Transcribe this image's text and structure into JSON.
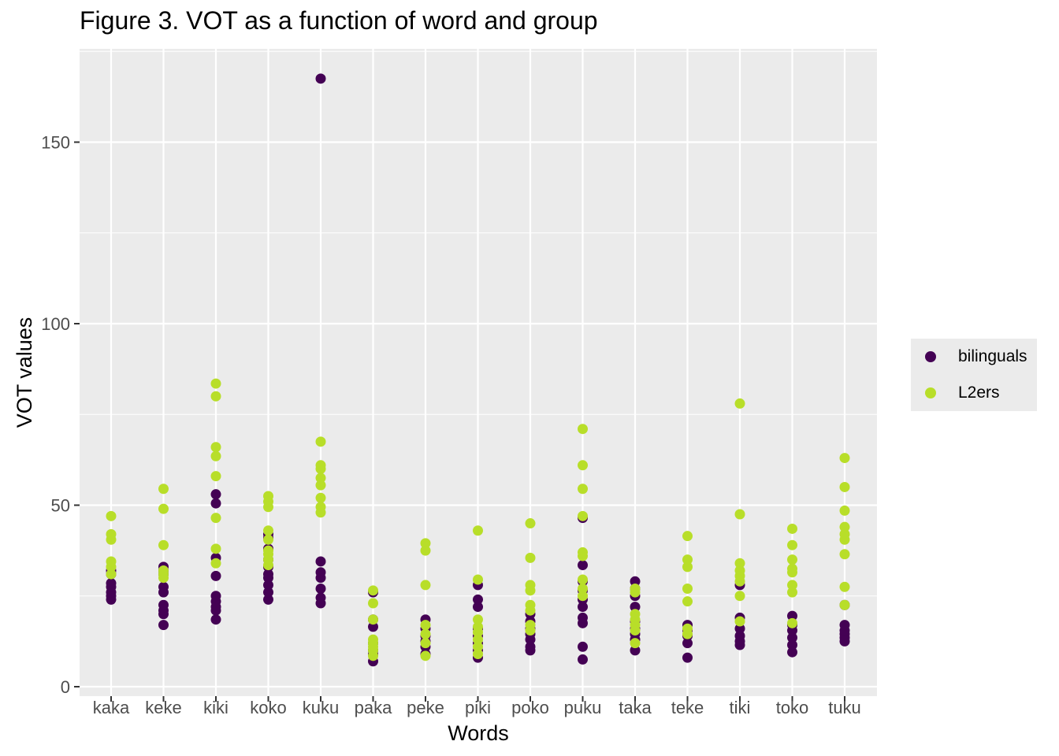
{
  "chart_data": {
    "type": "scatter",
    "title": "Figure 3. VOT as a function of word and group",
    "xlabel": "Words",
    "ylabel": "VOT values",
    "ylim": [
      0,
      175
    ],
    "yticks": [
      0,
      50,
      100,
      150
    ],
    "grid": true,
    "legend_position": "right",
    "categories": [
      "kaka",
      "keke",
      "kiki",
      "koko",
      "kuku",
      "paka",
      "peke",
      "piki",
      "poko",
      "puku",
      "taka",
      "teke",
      "tiki",
      "toko",
      "tuku"
    ],
    "series": [
      {
        "name": "bilinguals",
        "color": "#440154",
        "points": [
          {
            "x": "kaka",
            "y": [
              24,
              25,
              26,
              27.5,
              28.5,
              31,
              32
            ]
          },
          {
            "x": "keke",
            "y": [
              17,
              20,
              21,
              22.5,
              26,
              27.5,
              31,
              32,
              33
            ]
          },
          {
            "x": "kiki",
            "y": [
              18.5,
              21,
              22,
              23.5,
              25,
              30.5,
              35.5,
              50.5,
              53
            ]
          },
          {
            "x": "koko",
            "y": [
              24,
              26,
              28,
              30,
              31,
              33,
              35,
              38,
              41,
              42
            ]
          },
          {
            "x": "kuku",
            "y": [
              23,
              24.5,
              27,
              30,
              31.5,
              34.5,
              167.5
            ]
          },
          {
            "x": "paka",
            "y": [
              7,
              9,
              10,
              12,
              16.5,
              18.5,
              26
            ]
          },
          {
            "x": "peke",
            "y": [
              9,
              11,
              12.5,
              14,
              16,
              18.5
            ]
          },
          {
            "x": "piki",
            "y": [
              8,
              10,
              12,
              14,
              16,
              22,
              24,
              28
            ]
          },
          {
            "x": "poko",
            "y": [
              10,
              11,
              13,
              14.5,
              16,
              18,
              20
            ]
          },
          {
            "x": "puku",
            "y": [
              7.5,
              11,
              17.5,
              19,
              22,
              24,
              26.5,
              29,
              33.5,
              46.5
            ]
          },
          {
            "x": "taka",
            "y": [
              10,
              13,
              14.5,
              16,
              18,
              22,
              25,
              27,
              29
            ]
          },
          {
            "x": "teke",
            "y": [
              8,
              12,
              14,
              15.5,
              17
            ]
          },
          {
            "x": "tiki",
            "y": [
              11.5,
              12.5,
              14,
              16,
              19,
              28
            ]
          },
          {
            "x": "toko",
            "y": [
              9.5,
              11.5,
              13.5,
              15.5,
              17,
              19.5
            ]
          },
          {
            "x": "tuku",
            "y": [
              12.5,
              13.5,
              14.5,
              15.5,
              17,
              22.5
            ]
          }
        ]
      },
      {
        "name": "L2ers",
        "color": "#b8de29",
        "points": [
          {
            "x": "kaka",
            "y": [
              31,
              33,
              34.5,
              40.5,
              42,
              47
            ]
          },
          {
            "x": "keke",
            "y": [
              30,
              31,
              32,
              39,
              49,
              54.5
            ]
          },
          {
            "x": "kiki",
            "y": [
              34,
              38,
              46.5,
              58,
              63.5,
              66,
              80,
              83.5
            ]
          },
          {
            "x": "koko",
            "y": [
              33.5,
              35,
              36.5,
              37.5,
              40.5,
              43,
              49.5,
              51,
              52.5
            ]
          },
          {
            "x": "kuku",
            "y": [
              48,
              49.5,
              52,
              55.5,
              57.5,
              60,
              61,
              67.5
            ]
          },
          {
            "x": "paka",
            "y": [
              8.5,
              10,
              11,
              12,
              13,
              18.5,
              23,
              26.5
            ]
          },
          {
            "x": "peke",
            "y": [
              8.5,
              12,
              14.5,
              17,
              28,
              37.5,
              39.5
            ]
          },
          {
            "x": "piki",
            "y": [
              9,
              11,
              13,
              15,
              16.5,
              18.5,
              29.5,
              43
            ]
          },
          {
            "x": "poko",
            "y": [
              15.5,
              17,
              21,
              22.5,
              26.5,
              28,
              35.5,
              45
            ]
          },
          {
            "x": "puku",
            "y": [
              25,
              27,
              29.5,
              36,
              37,
              47,
              54.5,
              61,
              71
            ]
          },
          {
            "x": "taka",
            "y": [
              12,
              15.5,
              17,
              18.5,
              20,
              26,
              27
            ]
          },
          {
            "x": "teke",
            "y": [
              14.5,
              16,
              23.5,
              27,
              33,
              35,
              41.5
            ]
          },
          {
            "x": "tiki",
            "y": [
              18,
              25,
              29,
              30.5,
              32,
              34,
              47.5,
              78
            ]
          },
          {
            "x": "toko",
            "y": [
              17.5,
              26,
              28,
              31.5,
              32.5,
              35,
              39,
              43.5
            ]
          },
          {
            "x": "tuku",
            "y": [
              22.5,
              27.5,
              36.5,
              40.5,
              42,
              44,
              48.5,
              55,
              63
            ]
          }
        ]
      }
    ]
  }
}
